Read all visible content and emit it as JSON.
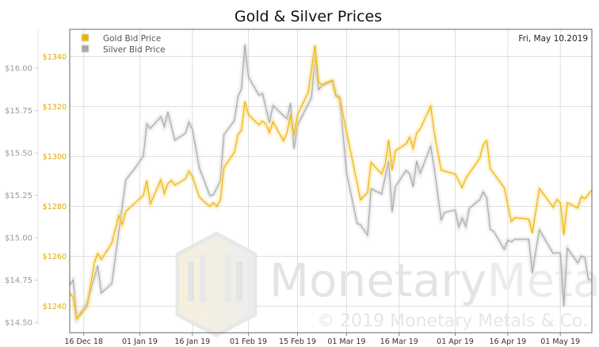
{
  "chart_data": {
    "type": "line",
    "title": "Gold & Silver Prices",
    "date_label": "Fri, May 10.2019",
    "watermark": {
      "brand_a": "Monetary",
      "brand_b": "Metals",
      "copyright": "© 2019 Monetary Metals & Co."
    },
    "xlim": [
      "2018-12-12",
      "2019-05-10"
    ],
    "x_ticks": [
      {
        "date": "2018-12-16",
        "label": "16 Dec 18"
      },
      {
        "date": "2019-01-01",
        "label": "01 Jan 19"
      },
      {
        "date": "2019-01-16",
        "label": "16 Jan 19"
      },
      {
        "date": "2019-02-01",
        "label": "01 Feb 19"
      },
      {
        "date": "2019-02-15",
        "label": "15 Feb 19"
      },
      {
        "date": "2019-03-01",
        "label": "01 Mar 19"
      },
      {
        "date": "2019-03-16",
        "label": "16 Mar 19"
      },
      {
        "date": "2019-04-01",
        "label": "01 Apr 19"
      },
      {
        "date": "2019-04-16",
        "label": "16 Apr 19"
      },
      {
        "date": "2019-05-01",
        "label": "01 May 19"
      }
    ],
    "gold_axis": {
      "ylim": [
        1229.4,
        1350.9
      ],
      "ticks": [
        {
          "v": 1240,
          "label": "$1240"
        },
        {
          "v": 1260,
          "label": "$1260"
        },
        {
          "v": 1280,
          "label": "$1280"
        },
        {
          "v": 1300,
          "label": "$1300"
        },
        {
          "v": 1320,
          "label": "$1320"
        },
        {
          "v": 1340,
          "label": "$1340"
        }
      ]
    },
    "silver_axis": {
      "ylim": [
        14.44,
        16.23
      ],
      "ticks": [
        {
          "v": 14.5,
          "label": "$14.50"
        },
        {
          "v": 14.75,
          "label": "$14.75"
        },
        {
          "v": 15.0,
          "label": "$15.00"
        },
        {
          "v": 15.25,
          "label": "$15.25"
        },
        {
          "v": 15.5,
          "label": "$15.50"
        },
        {
          "v": 15.75,
          "label": "$15.75"
        },
        {
          "v": 16.0,
          "label": "$16.00"
        }
      ]
    },
    "grid": true,
    "legend_position": "top-left",
    "series": [
      {
        "name": "Gold Bid Price",
        "color": "#f0b400",
        "axis": "gold",
        "points": [
          [
            "2018-12-12",
            1245.4
          ],
          [
            "2018-12-13",
            1243.5
          ],
          [
            "2018-12-14",
            1234.9
          ],
          [
            "2018-12-17",
            1240.0
          ],
          [
            "2018-12-19",
            1257.4
          ],
          [
            "2018-12-20",
            1261.2
          ],
          [
            "2018-12-21",
            1258.7
          ],
          [
            "2018-12-24",
            1265.3
          ],
          [
            "2018-12-26",
            1276.4
          ],
          [
            "2018-12-27",
            1272.6
          ],
          [
            "2018-12-28",
            1278.0
          ],
          [
            "2019-01-02",
            1284.4
          ],
          [
            "2019-01-03",
            1290.4
          ],
          [
            "2019-01-04",
            1280.9
          ],
          [
            "2019-01-07",
            1290.7
          ],
          [
            "2019-01-08",
            1285.0
          ],
          [
            "2019-01-09",
            1289.1
          ],
          [
            "2019-01-10",
            1290.4
          ],
          [
            "2019-01-11",
            1288.5
          ],
          [
            "2019-01-14",
            1291.0
          ],
          [
            "2019-01-15",
            1294.2
          ],
          [
            "2019-01-16",
            1292.0
          ],
          [
            "2019-01-18",
            1283.7
          ],
          [
            "2019-01-21",
            1279.9
          ],
          [
            "2019-01-22",
            1281.5
          ],
          [
            "2019-01-23",
            1279.9
          ],
          [
            "2019-01-24",
            1282.5
          ],
          [
            "2019-01-25",
            1295.5
          ],
          [
            "2019-01-28",
            1301.8
          ],
          [
            "2019-01-29",
            1308.8
          ],
          [
            "2019-01-30",
            1310.4
          ],
          [
            "2019-01-31",
            1322.1
          ],
          [
            "2019-02-01",
            1316.7
          ],
          [
            "2019-02-04",
            1312.6
          ],
          [
            "2019-02-05",
            1314.2
          ],
          [
            "2019-02-06",
            1312.9
          ],
          [
            "2019-02-07",
            1309.4
          ],
          [
            "2019-02-08",
            1313.9
          ],
          [
            "2019-02-11",
            1306.2
          ],
          [
            "2019-02-12",
            1309.4
          ],
          [
            "2019-02-13",
            1316.7
          ],
          [
            "2019-02-14",
            1308.5
          ],
          [
            "2019-02-15",
            1316.7
          ],
          [
            "2019-02-18",
            1325.6
          ],
          [
            "2019-02-20",
            1344.6
          ],
          [
            "2019-02-21",
            1329.7
          ],
          [
            "2019-02-22",
            1328.7
          ],
          [
            "2019-02-25",
            1330.5
          ],
          [
            "2019-02-26",
            1324.0
          ],
          [
            "2019-02-27",
            1323.4
          ],
          [
            "2019-03-05",
            1282.5
          ],
          [
            "2019-03-06",
            1284.2
          ],
          [
            "2019-03-07",
            1285.5
          ],
          [
            "2019-03-08",
            1297.7
          ],
          [
            "2019-03-11",
            1292.9
          ],
          [
            "2019-03-12",
            1296.9
          ],
          [
            "2019-03-13",
            1306.6
          ],
          [
            "2019-03-14",
            1294.5
          ],
          [
            "2019-03-15",
            1302.4
          ],
          [
            "2019-03-18",
            1305.0
          ],
          [
            "2019-03-19",
            1307.8
          ],
          [
            "2019-03-20",
            1303.1
          ],
          [
            "2019-03-21",
            1309.4
          ],
          [
            "2019-03-22",
            1311.0
          ],
          [
            "2019-03-25",
            1320.2
          ],
          [
            "2019-03-26",
            1309.7
          ],
          [
            "2019-03-28",
            1294.5
          ],
          [
            "2019-04-01",
            1292.9
          ],
          [
            "2019-04-03",
            1287.5
          ],
          [
            "2019-04-04",
            1291.2
          ],
          [
            "2019-04-08",
            1299.3
          ],
          [
            "2019-04-09",
            1304.8
          ],
          [
            "2019-04-10",
            1306.4
          ],
          [
            "2019-04-11",
            1295.1
          ],
          [
            "2019-04-15",
            1287.5
          ],
          [
            "2019-04-17",
            1273.9
          ],
          [
            "2019-04-18",
            1275.5
          ],
          [
            "2019-04-22",
            1274.9
          ],
          [
            "2019-04-23",
            1269.2
          ],
          [
            "2019-04-25",
            1287.2
          ],
          [
            "2019-04-29",
            1279.6
          ],
          [
            "2019-04-30",
            1282.8
          ],
          [
            "2019-05-01",
            1281.5
          ],
          [
            "2019-05-02",
            1268.5
          ],
          [
            "2019-05-03",
            1281.5
          ],
          [
            "2019-05-06",
            1279.3
          ],
          [
            "2019-05-07",
            1284.0
          ],
          [
            "2019-05-08",
            1283.0
          ],
          [
            "2019-05-10",
            1286.6
          ]
        ]
      },
      {
        "name": "Silver Bid Price",
        "color": "#a8a8a8",
        "axis": "silver",
        "points": [
          [
            "2018-12-12",
            14.721
          ],
          [
            "2018-12-13",
            14.753
          ],
          [
            "2018-12-14",
            14.52
          ],
          [
            "2018-12-17",
            14.618
          ],
          [
            "2018-12-20",
            14.837
          ],
          [
            "2018-12-21",
            14.674
          ],
          [
            "2018-12-24",
            14.73
          ],
          [
            "2018-12-28",
            15.342
          ],
          [
            "2018-12-31",
            15.421
          ],
          [
            "2019-01-02",
            15.482
          ],
          [
            "2019-01-03",
            15.673
          ],
          [
            "2019-01-04",
            15.645
          ],
          [
            "2019-01-07",
            15.715
          ],
          [
            "2019-01-08",
            15.654
          ],
          [
            "2019-01-09",
            15.743
          ],
          [
            "2019-01-11",
            15.575
          ],
          [
            "2019-01-14",
            15.617
          ],
          [
            "2019-01-15",
            15.683
          ],
          [
            "2019-01-16",
            15.64
          ],
          [
            "2019-01-18",
            15.412
          ],
          [
            "2019-01-21",
            15.248
          ],
          [
            "2019-01-22",
            15.253
          ],
          [
            "2019-01-24",
            15.337
          ],
          [
            "2019-01-25",
            15.608
          ],
          [
            "2019-01-28",
            15.692
          ],
          [
            "2019-01-29",
            15.832
          ],
          [
            "2019-01-30",
            15.879
          ],
          [
            "2019-01-31",
            16.14
          ],
          [
            "2019-02-01",
            15.949
          ],
          [
            "2019-02-04",
            15.841
          ],
          [
            "2019-02-05",
            15.851
          ],
          [
            "2019-02-07",
            15.678
          ],
          [
            "2019-02-08",
            15.781
          ],
          [
            "2019-02-12",
            15.701
          ],
          [
            "2019-02-13",
            15.795
          ],
          [
            "2019-02-14",
            15.524
          ],
          [
            "2019-02-15",
            15.664
          ],
          [
            "2019-02-19",
            15.827
          ],
          [
            "2019-02-20",
            16.075
          ],
          [
            "2019-02-21",
            15.874
          ],
          [
            "2019-02-22",
            15.897
          ],
          [
            "2019-02-25",
            15.925
          ],
          [
            "2019-02-26",
            15.841
          ],
          [
            "2019-02-27",
            15.832
          ],
          [
            "2019-03-01",
            15.384
          ],
          [
            "2019-03-04",
            15.085
          ],
          [
            "2019-03-05",
            15.076
          ],
          [
            "2019-03-07",
            15.015
          ],
          [
            "2019-03-08",
            15.29
          ],
          [
            "2019-03-11",
            15.258
          ],
          [
            "2019-03-13",
            15.454
          ],
          [
            "2019-03-14",
            15.15
          ],
          [
            "2019-03-15",
            15.304
          ],
          [
            "2019-03-18",
            15.398
          ],
          [
            "2019-03-19",
            15.379
          ],
          [
            "2019-03-20",
            15.3
          ],
          [
            "2019-03-21",
            15.454
          ],
          [
            "2019-03-22",
            15.379
          ],
          [
            "2019-03-25",
            15.542
          ],
          [
            "2019-03-26",
            15.412
          ],
          [
            "2019-03-28",
            15.104
          ],
          [
            "2019-03-29",
            15.15
          ],
          [
            "2019-04-01",
            15.164
          ],
          [
            "2019-04-02",
            15.062
          ],
          [
            "2019-04-03",
            15.118
          ],
          [
            "2019-04-04",
            15.066
          ],
          [
            "2019-04-05",
            15.174
          ],
          [
            "2019-04-08",
            15.225
          ],
          [
            "2019-04-09",
            15.272
          ],
          [
            "2019-04-10",
            15.234
          ],
          [
            "2019-04-11",
            15.048
          ],
          [
            "2019-04-12",
            15.038
          ],
          [
            "2019-04-15",
            14.931
          ],
          [
            "2019-04-16",
            14.987
          ],
          [
            "2019-04-17",
            14.977
          ],
          [
            "2019-04-18",
            14.991
          ],
          [
            "2019-04-22",
            14.991
          ],
          [
            "2019-04-23",
            14.791
          ],
          [
            "2019-04-24",
            14.921
          ],
          [
            "2019-04-25",
            15.048
          ],
          [
            "2019-04-29",
            14.907
          ],
          [
            "2019-04-30",
            14.912
          ],
          [
            "2019-05-01",
            14.91
          ],
          [
            "2019-05-02",
            14.595
          ],
          [
            "2019-05-03",
            14.94
          ],
          [
            "2019-05-06",
            14.851
          ],
          [
            "2019-05-07",
            14.893
          ],
          [
            "2019-05-08",
            14.884
          ],
          [
            "2019-05-09",
            14.753
          ],
          [
            "2019-05-10",
            14.753
          ]
        ]
      }
    ]
  }
}
